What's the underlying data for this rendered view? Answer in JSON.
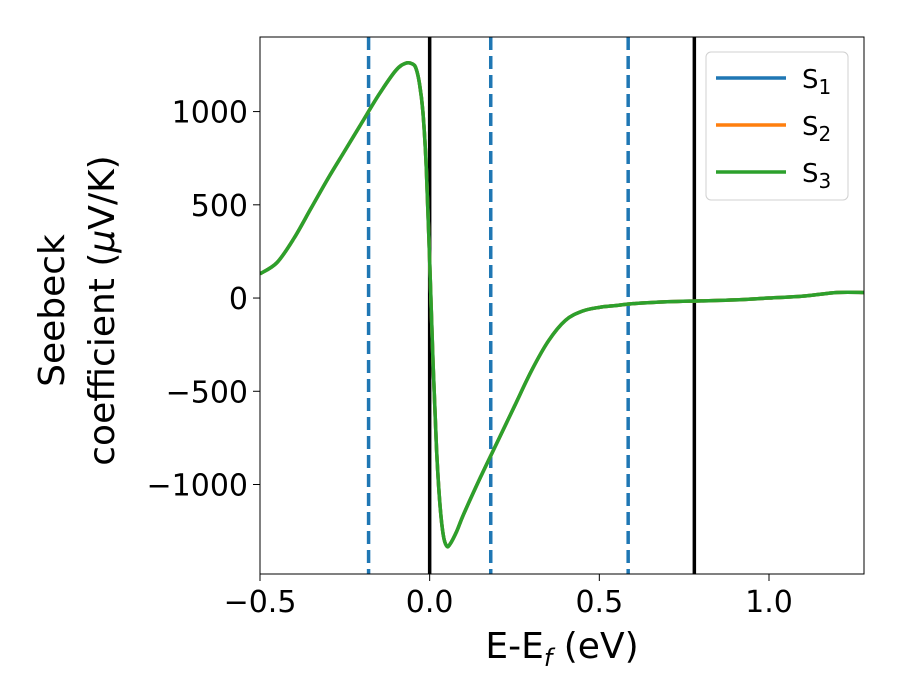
{
  "chart_data": {
    "type": "line",
    "xlabel": "E-E",
    "xlabel_sub": "f",
    "xlabel_unit": " (eV)",
    "ylabel_line1": "Seebeck",
    "ylabel_line2_pre": "coefficient  (",
    "ylabel_mu": "μ",
    "ylabel_line2_post": "V/K)",
    "xlim": [
      -0.5,
      1.28
    ],
    "ylim": [
      -1480,
      1400
    ],
    "xticks": [
      -0.5,
      0.0,
      0.5,
      1.0
    ],
    "xtick_labels": [
      "−0.5",
      "0.0",
      "0.5",
      "1.0"
    ],
    "yticks": [
      -1000,
      -500,
      0,
      500,
      1000
    ],
    "ytick_labels": [
      "−1000",
      "−500",
      "0",
      "500",
      "1000"
    ],
    "legend_position": "top-right",
    "grid": false,
    "vlines": [
      {
        "x": -0.18,
        "style": "dashed",
        "color": "#1f77b4"
      },
      {
        "x": 0.0,
        "style": "solid",
        "color": "#000000"
      },
      {
        "x": 0.18,
        "style": "dashed",
        "color": "#1f77b4"
      },
      {
        "x": 0.585,
        "style": "dashed",
        "color": "#1f77b4"
      },
      {
        "x": 0.78,
        "style": "solid",
        "color": "#000000"
      }
    ],
    "x": [
      -0.5,
      -0.45,
      -0.4,
      -0.35,
      -0.3,
      -0.25,
      -0.2,
      -0.15,
      -0.1,
      -0.07,
      -0.05,
      -0.04,
      -0.03,
      -0.02,
      -0.01,
      0.0,
      0.01,
      0.02,
      0.03,
      0.04,
      0.05,
      0.06,
      0.08,
      0.1,
      0.15,
      0.2,
      0.25,
      0.3,
      0.35,
      0.4,
      0.45,
      0.5,
      0.55,
      0.6,
      0.7,
      0.8,
      0.9,
      1.0,
      1.1,
      1.2,
      1.28
    ],
    "series": [
      {
        "name": "S",
        "name_sub": "1",
        "color": "#1f77b4",
        "values": [
          130,
          190,
          320,
          480,
          640,
          790,
          940,
          1090,
          1220,
          1260,
          1255,
          1230,
          1150,
          1000,
          700,
          200,
          -350,
          -800,
          -1100,
          -1270,
          -1330,
          -1320,
          -1250,
          -1160,
          -960,
          -770,
          -580,
          -390,
          -230,
          -120,
          -70,
          -50,
          -40,
          -30,
          -20,
          -15,
          -10,
          0,
          10,
          30,
          30
        ]
      },
      {
        "name": "S",
        "name_sub": "2",
        "color": "#ff7f0e",
        "values": [
          130,
          190,
          320,
          480,
          640,
          790,
          940,
          1090,
          1220,
          1260,
          1255,
          1230,
          1150,
          1000,
          700,
          200,
          -350,
          -800,
          -1100,
          -1270,
          -1330,
          -1320,
          -1250,
          -1160,
          -960,
          -770,
          -580,
          -390,
          -230,
          -120,
          -70,
          -50,
          -40,
          -30,
          -20,
          -15,
          -10,
          0,
          10,
          30,
          30
        ]
      },
      {
        "name": "S",
        "name_sub": "3",
        "color": "#2ca02c",
        "values": [
          130,
          190,
          320,
          480,
          640,
          790,
          940,
          1090,
          1220,
          1260,
          1255,
          1230,
          1150,
          1000,
          700,
          200,
          -350,
          -800,
          -1100,
          -1270,
          -1330,
          -1320,
          -1250,
          -1160,
          -960,
          -770,
          -580,
          -390,
          -230,
          -120,
          -70,
          -50,
          -40,
          -30,
          -20,
          -15,
          -10,
          0,
          10,
          30,
          30
        ]
      }
    ]
  }
}
